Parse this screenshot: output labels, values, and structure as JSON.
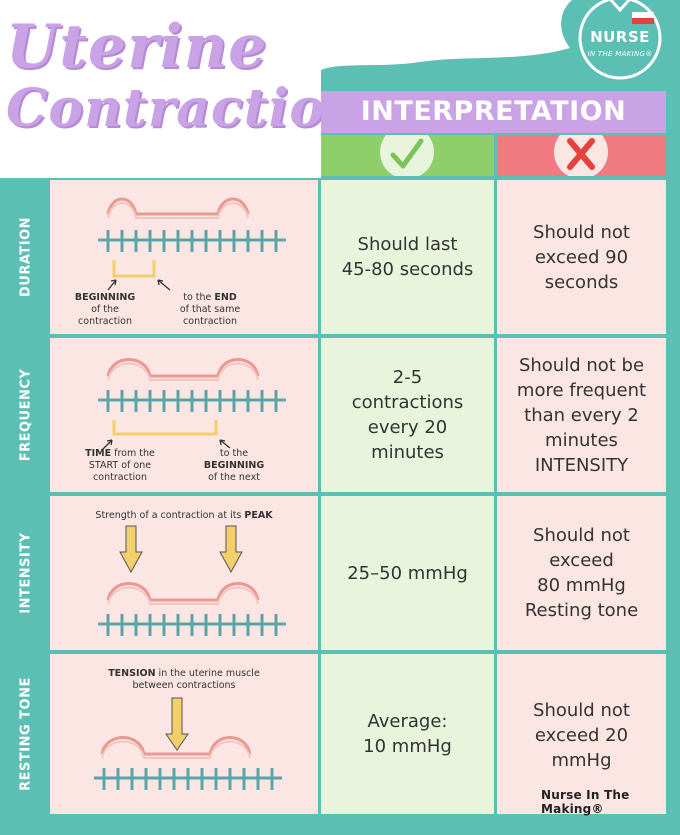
{
  "title": {
    "line1": "Uterine",
    "line2": "Contractions"
  },
  "logo": {
    "line1": "NURSE",
    "line2": "IN THE MAKING®"
  },
  "header": {
    "interpretation": "INTERPRETATION",
    "good_icon": "check-icon",
    "bad_icon": "x-icon"
  },
  "rows": [
    {
      "label": "DURATION",
      "good": "Should last\n45-80 seconds",
      "bad": "Should not\nexceed 90\nseconds",
      "notes": {
        "left_bold": "BEGINNING",
        "left_rest": "of the\ncontraction",
        "right_pre": "to the ",
        "right_bold": "END",
        "right_rest": "of that same\ncontraction"
      }
    },
    {
      "label": "FREQUENCY",
      "good": "2-5\ncontractions\nevery 20\nminutes",
      "bad": "Should not be\nmore frequent\nthan every 2\nminutes\nINTENSITY",
      "notes": {
        "left_bold": "TIME",
        "left_rest": " from the\nSTART of one\ncontraction",
        "right_pre": "to the",
        "right_bold": "BEGINNING",
        "right_rest": "of the next"
      }
    },
    {
      "label": "INTENSITY",
      "good": "25–50 mmHg",
      "bad": "Should not\nexceed\n80 mmHg\nResting tone",
      "notes": {
        "top_pre": "Strength of a contraction at its ",
        "top_bold": "PEAK"
      }
    },
    {
      "label": "RESTING TONE",
      "good": "Average:\n10 mmHg",
      "bad": "Should not\nexceed 20\nmmHg",
      "notes": {
        "top_bold": "TENSION",
        "top_rest": " in the uterine muscle\nbetween contractions"
      }
    }
  ],
  "signature": "Nurse In The Making®",
  "colors": {
    "teal": "#5cbfb4",
    "lavender": "#c9a3e6",
    "green": "#8fcf6a",
    "red": "#f07a80",
    "pink_bg": "#fbe6e4",
    "green_bg": "#e8f5dc",
    "curve": "#e79a92",
    "strip": "#5aa6a6",
    "bracket": "#f3cf6a"
  }
}
